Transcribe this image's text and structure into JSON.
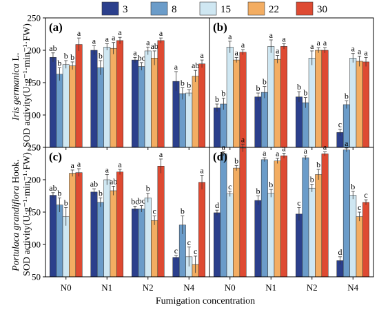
{
  "legend": [
    "3",
    "8",
    "15",
    "22",
    "30"
  ],
  "colors": [
    "#2b3f8c",
    "#6b9cc9",
    "#cfe7f2",
    "#f3ad62",
    "#de4a32"
  ],
  "xlabel": "Fumigation concentration",
  "ylabel_top": {
    "species": "Iris germanica",
    "authority": " L.",
    "unit": "SOD activity(U·g⁻¹·min⁻¹·FW)"
  },
  "ylabel_bottom": {
    "species": "Portulaca grandiflora",
    "authority": " Hook.",
    "unit": "SOD activity(U·g⁻¹·min⁻¹·FW)"
  },
  "chart_data": [
    {
      "type": "bar",
      "panel": "(a)",
      "categories": [
        "N0",
        "N1",
        "N2",
        "N4"
      ],
      "ylim": [
        50,
        250
      ],
      "yticks": [
        50,
        100,
        150,
        200,
        250
      ],
      "series": [
        {
          "name": "3",
          "values": [
            189,
            200,
            185,
            152
          ],
          "errors": [
            7,
            7,
            4,
            15
          ],
          "labels": [
            "ab",
            "a",
            "a",
            "a"
          ]
        },
        {
          "name": "8",
          "values": [
            163,
            173,
            175,
            133
          ],
          "errors": [
            10,
            11,
            6,
            9
          ],
          "labels": [
            "b",
            "b",
            "bc",
            "b"
          ]
        },
        {
          "name": "15",
          "values": [
            178,
            205,
            199,
            134
          ],
          "errors": [
            6,
            5,
            6,
            5
          ],
          "labels": [
            "b",
            "a",
            "a",
            "b"
          ]
        },
        {
          "name": "22",
          "values": [
            176,
            203,
            188,
            160
          ],
          "errors": [
            6,
            9,
            11,
            9
          ],
          "labels": [
            "b",
            "a",
            "ab",
            "ab"
          ]
        },
        {
          "name": "30",
          "values": [
            209,
            215,
            215,
            179
          ],
          "errors": [
            10,
            5,
            4,
            6
          ],
          "labels": [
            "a",
            "a",
            "a",
            "a"
          ]
        }
      ]
    },
    {
      "type": "bar",
      "panel": "(b)",
      "categories": [
        "N0",
        "N1",
        "N2",
        "N4"
      ],
      "ylim": [
        50,
        250
      ],
      "yticks": [
        50,
        100,
        150,
        200,
        250
      ],
      "series": [
        {
          "name": "3",
          "values": [
            111,
            128,
            128,
            73
          ],
          "errors": [
            6,
            6,
            8,
            5
          ],
          "labels": [
            "b",
            "b",
            "b",
            "c"
          ]
        },
        {
          "name": "8",
          "values": [
            117,
            135,
            119,
            116
          ],
          "errors": [
            9,
            9,
            8,
            6
          ],
          "labels": [
            "b",
            "b",
            "b",
            "b"
          ]
        },
        {
          "name": "15",
          "values": [
            205,
            206,
            188,
            188
          ],
          "errors": [
            9,
            10,
            11,
            7
          ],
          "labels": [
            "a",
            "a",
            "a",
            "a"
          ]
        },
        {
          "name": "22",
          "values": [
            185,
            186,
            200,
            183
          ],
          "errors": [
            4,
            6,
            4,
            8
          ],
          "labels": [
            "a",
            "a",
            "a",
            "a"
          ]
        },
        {
          "name": "30",
          "values": [
            197,
            206,
            200,
            182
          ],
          "errors": [
            4,
            4,
            4,
            7
          ],
          "labels": [
            "a",
            "a",
            "a",
            "a"
          ]
        }
      ]
    },
    {
      "type": "bar",
      "panel": "(c)",
      "categories": [
        "N0",
        "N1",
        "N2",
        "N4"
      ],
      "ylim": [
        50,
        250
      ],
      "yticks": [
        50,
        100,
        150,
        200,
        250
      ],
      "series": [
        {
          "name": "3",
          "values": [
            176,
            181,
            155,
            80
          ],
          "errors": [
            4,
            5,
            4,
            3
          ],
          "labels": [
            "ab",
            "ab",
            "bc",
            "c"
          ]
        },
        {
          "name": "8",
          "values": [
            161,
            165,
            155,
            130
          ],
          "errors": [
            11,
            7,
            5,
            14
          ],
          "labels": [
            "b",
            "b",
            "bc",
            "b"
          ]
        },
        {
          "name": "15",
          "values": [
            143,
            200,
            172,
            81
          ],
          "errors": [
            14,
            8,
            7,
            15
          ],
          "labels": [
            "b",
            "a",
            "b",
            "c"
          ]
        },
        {
          "name": "22",
          "values": [
            210,
            183,
            137,
            69
          ],
          "errors": [
            5,
            7,
            7,
            13
          ],
          "labels": [
            "a",
            "ab",
            "c",
            "c"
          ]
        },
        {
          "name": "30",
          "values": [
            211,
            212,
            221,
            196
          ],
          "errors": [
            6,
            4,
            11,
            11
          ],
          "labels": [
            "a",
            "a",
            "a",
            "a"
          ]
        }
      ]
    },
    {
      "type": "bar",
      "panel": "(d)",
      "categories": [
        "N0",
        "N1",
        "N2",
        "N4"
      ],
      "ylim": [
        50,
        250
      ],
      "yticks": [
        50,
        100,
        150,
        200,
        250
      ],
      "series": [
        {
          "name": "3",
          "values": [
            149,
            168,
            147,
            75
          ],
          "errors": [
            4,
            7,
            10,
            6
          ],
          "labels": [
            "d",
            "b",
            "c",
            "d"
          ]
        },
        {
          "name": "8",
          "values": [
            240,
            231,
            234,
            246
          ],
          "errors": [
            3,
            3,
            3,
            3
          ],
          "labels": [
            "a",
            "a",
            "a",
            "a"
          ]
        },
        {
          "name": "15",
          "values": [
            178,
            179,
            187,
            176
          ],
          "errors": [
            4,
            6,
            6,
            6
          ],
          "labels": [
            "c",
            "b",
            "b",
            "b"
          ]
        },
        {
          "name": "22",
          "values": [
            218,
            229,
            208,
            143
          ],
          "errors": [
            4,
            4,
            8,
            7
          ],
          "labels": [
            "b",
            "a",
            "b",
            "c"
          ]
        },
        {
          "name": "30",
          "values": [
            249,
            237,
            240,
            165
          ],
          "errors": [
            6,
            4,
            3,
            4
          ],
          "labels": [
            "a",
            "a",
            "a",
            "c"
          ]
        }
      ]
    }
  ]
}
